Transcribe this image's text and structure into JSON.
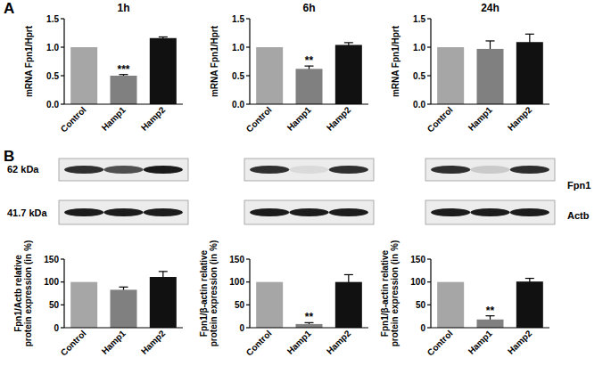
{
  "panel_labels": [
    "A",
    "B"
  ],
  "blot": {
    "size_labels": [
      "62 kDa",
      "41.7 kDa"
    ],
    "protein_labels": [
      "Fpn1",
      "Actb"
    ]
  },
  "chart_data": [
    {
      "type": "bar",
      "title": "1h",
      "y_label": "mRNA Fpn1/Hprt",
      "categories": [
        "Control",
        "Hamp1",
        "Hamp2"
      ],
      "values": [
        1.0,
        0.5,
        1.16
      ],
      "errors": [
        null,
        0.02,
        0.02
      ],
      "colors": [
        "#a6a6a6",
        "#808080",
        "#111111"
      ],
      "significance": [
        null,
        "***",
        null
      ],
      "ylim": [
        0,
        1.5
      ],
      "yticks": [
        {
          "value": 0,
          "label": "0.0"
        },
        0.5,
        {
          "value": 1,
          "label": "1.0"
        },
        1.5
      ]
    },
    {
      "type": "bar",
      "title": "6h",
      "y_label": "mRNA Fpn1/Hprt",
      "categories": [
        "Control",
        "Hamp1",
        "Hamp2"
      ],
      "values": [
        1.0,
        0.62,
        1.04
      ],
      "errors": [
        null,
        0.05,
        0.04
      ],
      "colors": [
        "#a6a6a6",
        "#808080",
        "#111111"
      ],
      "significance": [
        null,
        "**",
        null
      ],
      "ylim": [
        0,
        1.5
      ],
      "yticks": [
        {
          "value": 0,
          "label": "0.0"
        },
        0.5,
        {
          "value": 1,
          "label": "1.0"
        },
        1.5
      ]
    },
    {
      "type": "bar",
      "title": "24h",
      "y_label": "mRNA Fpn1/Hprt",
      "categories": [
        "Control",
        "Hamp1",
        "Hamp2"
      ],
      "values": [
        1.0,
        0.97,
        1.09
      ],
      "errors": [
        null,
        0.14,
        0.14
      ],
      "colors": [
        "#a6a6a6",
        "#808080",
        "#111111"
      ],
      "ylim": [
        0,
        1.5
      ],
      "yticks": [
        {
          "value": 0,
          "label": "0.0"
        },
        0.5,
        {
          "value": 1,
          "label": "1.0"
        },
        1.5
      ]
    },
    {
      "type": "bar",
      "y_label": "Fpn1/Actb relative protein expression (in %)",
      "categories": [
        "Control",
        "Hamp1",
        "Hamp2"
      ],
      "values": [
        100,
        83,
        111
      ],
      "errors": [
        null,
        6,
        12
      ],
      "colors": [
        "#a6a6a6",
        "#808080",
        "#111111"
      ],
      "ylim": [
        0,
        150
      ],
      "yticks": [
        0,
        50,
        100,
        150
      ]
    },
    {
      "type": "bar",
      "y_label": "Fpn1/β-actin relative protein expression (in %)",
      "categories": [
        "Control",
        "Hamp1",
        "Hamp2"
      ],
      "values": [
        100,
        8,
        100
      ],
      "errors": [
        null,
        3,
        16
      ],
      "colors": [
        "#a6a6a6",
        "#808080",
        "#111111"
      ],
      "significance": [
        null,
        "**",
        null
      ],
      "ylim": [
        0,
        150
      ],
      "yticks": [
        0,
        50,
        100,
        150
      ]
    },
    {
      "type": "bar",
      "y_label": "Fpn1/β-actin relative protein expression (in %)",
      "categories": [
        "Control",
        "Hamp1",
        "Hamp2"
      ],
      "values": [
        100,
        18,
        101
      ],
      "errors": [
        null,
        8,
        7
      ],
      "colors": [
        "#a6a6a6",
        "#808080",
        "#111111"
      ],
      "significance": [
        null,
        "**",
        null
      ],
      "ylim": [
        0,
        150
      ],
      "yticks": [
        0,
        50,
        100,
        150
      ]
    }
  ]
}
